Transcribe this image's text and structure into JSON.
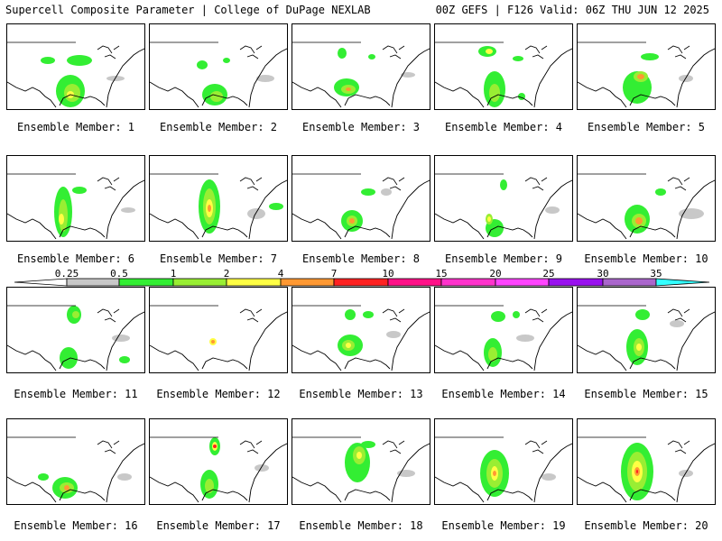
{
  "header": {
    "left_title": "Supercell Composite Parameter | College of DuPage NEXLAB",
    "right_title": "00Z GEFS | F126 Valid: 06Z THU JUN 12 2025"
  },
  "colorbar": {
    "ticks": [
      "0.25",
      "0.5",
      "1",
      "2",
      "4",
      "7",
      "10",
      "15",
      "20",
      "25",
      "30",
      "35"
    ],
    "colors": [
      "#c8c8c8",
      "#33ee33",
      "#99ee33",
      "#ffff44",
      "#ff9933",
      "#ff2222",
      "#ff1188",
      "#ff33cc",
      "#ff44ff",
      "#9911ee",
      "#aa66cc",
      "#33ffff"
    ]
  },
  "panels": [
    {
      "label": "Ensemble Member: 1"
    },
    {
      "label": "Ensemble Member: 2"
    },
    {
      "label": "Ensemble Member: 3"
    },
    {
      "label": "Ensemble Member: 4"
    },
    {
      "label": "Ensemble Member: 5"
    },
    {
      "label": "Ensemble Member: 6"
    },
    {
      "label": "Ensemble Member: 7"
    },
    {
      "label": "Ensemble Member: 8"
    },
    {
      "label": "Ensemble Member: 9"
    },
    {
      "label": "Ensemble Member: 10"
    },
    {
      "label": "Ensemble Member: 11"
    },
    {
      "label": "Ensemble Member: 12"
    },
    {
      "label": "Ensemble Member: 13"
    },
    {
      "label": "Ensemble Member: 14"
    },
    {
      "label": "Ensemble Member: 15"
    },
    {
      "label": "Ensemble Member: 16"
    },
    {
      "label": "Ensemble Member: 17"
    },
    {
      "label": "Ensemble Member: 18"
    },
    {
      "label": "Ensemble Member: 19"
    },
    {
      "label": "Ensemble Member: 20"
    }
  ]
}
